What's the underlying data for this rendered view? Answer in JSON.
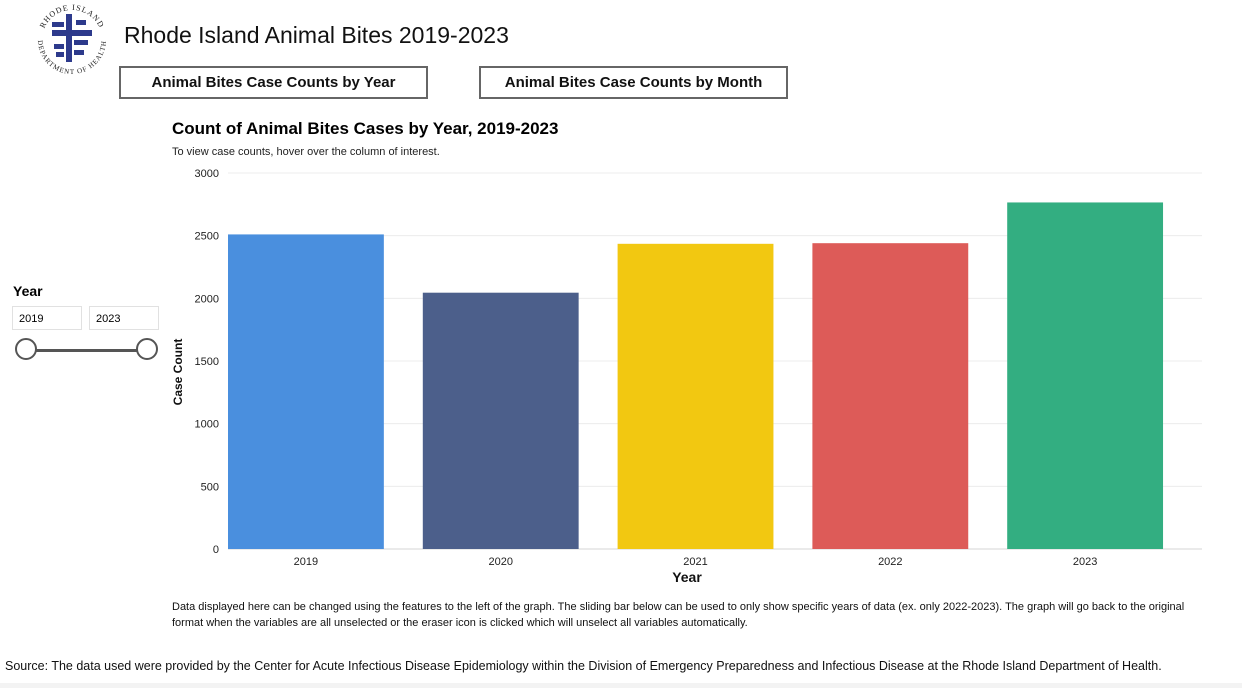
{
  "header": {
    "title": "Rhode Island Animal Bites 2019-2023",
    "logo_text_top": "RHODE ISLAND",
    "logo_text_side": "DEPARTMENT OF HEALTH"
  },
  "nav": {
    "year_button": "Animal Bites Case Counts by Year",
    "month_button": "Animal Bites Case Counts by Month"
  },
  "filter": {
    "label": "Year",
    "from": "2019",
    "to": "2023"
  },
  "chart_data": {
    "type": "bar",
    "title": "Count of Animal Bites Cases by Year, 2019-2023",
    "subtitle": "To view case counts, hover over the column of interest.",
    "xlabel": "Year",
    "ylabel": "Case Count",
    "categories": [
      "2019",
      "2020",
      "2021",
      "2022",
      "2023"
    ],
    "values": [
      2510,
      2045,
      2435,
      2440,
      2765
    ],
    "colors": [
      "#4a8fde",
      "#4c5f8b",
      "#f2c811",
      "#dd5b58",
      "#33ae81"
    ],
    "ylim": [
      0,
      3000
    ],
    "yticks": [
      0,
      500,
      1000,
      1500,
      2000,
      2500,
      3000
    ],
    "grid": true,
    "legend": "none"
  },
  "footer": {
    "note": "Data displayed here can be changed using the features to the left of the graph. The sliding bar below can be used to only show specific years of data (ex. only 2022-2023). The graph will go back to the original format when the variables are all unselected or the eraser icon is clicked which will unselect all variables automatically.",
    "source": "Source: The data used were provided by the Center for Acute Infectious Disease Epidemiology within the Division of Emergency Preparedness and Infectious Disease at the Rhode Island Department of Health."
  }
}
